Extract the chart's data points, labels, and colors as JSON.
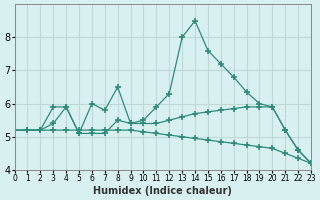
{
  "xlabel": "Humidex (Indice chaleur)",
  "x": [
    0,
    1,
    2,
    3,
    4,
    5,
    6,
    7,
    8,
    9,
    10,
    11,
    12,
    13,
    14,
    15,
    16,
    17,
    18,
    19,
    20,
    21,
    22,
    23
  ],
  "line1": [
    5.2,
    5.2,
    5.2,
    5.9,
    5.9,
    5.1,
    6.0,
    5.8,
    6.5,
    5.4,
    5.5,
    5.9,
    6.3,
    8.0,
    8.5,
    7.6,
    7.2,
    6.8,
    6.35,
    6.0,
    5.9,
    5.2,
    4.6,
    4.2
  ],
  "line2": [
    5.2,
    5.2,
    5.2,
    5.4,
    5.9,
    5.1,
    5.1,
    5.1,
    5.5,
    5.4,
    5.4,
    5.4,
    5.5,
    5.6,
    5.7,
    5.75,
    5.8,
    5.85,
    5.9,
    5.9,
    5.9,
    5.2,
    4.6,
    4.2
  ],
  "line3": [
    5.2,
    5.2,
    5.2,
    5.2,
    5.2,
    5.2,
    5.2,
    5.2,
    5.2,
    5.2,
    5.15,
    5.1,
    5.05,
    5.0,
    4.95,
    4.9,
    4.85,
    4.8,
    4.75,
    4.7,
    4.65,
    4.5,
    4.35,
    4.2
  ],
  "line_color": "#2e8b7a",
  "bg_color": "#d8f0f0",
  "grid_color": "#c0d8d8",
  "ylim": [
    4.0,
    9.0
  ],
  "xlim": [
    0,
    23
  ],
  "yticks": [
    4,
    5,
    6,
    7,
    8
  ],
  "xticks": [
    0,
    1,
    2,
    3,
    4,
    5,
    6,
    7,
    8,
    9,
    10,
    11,
    12,
    13,
    14,
    15,
    16,
    17,
    18,
    19,
    20,
    21,
    22,
    23
  ]
}
